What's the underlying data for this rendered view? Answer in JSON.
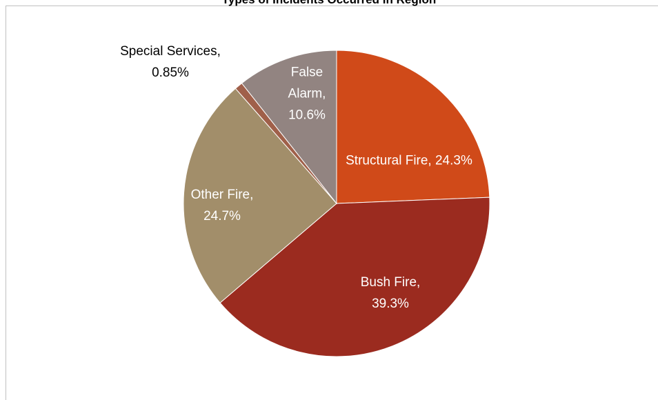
{
  "chart_data": {
    "type": "pie",
    "title": "Types of Incidents Occurred in Region",
    "categories": [
      "Structural Fire",
      "Bush Fire",
      "Other Fire",
      "Special Services",
      "False Alarm"
    ],
    "values": [
      24.3,
      39.3,
      24.7,
      0.85,
      10.6
    ],
    "value_labels": [
      "Structural Fire, 24.3%",
      "Bush Fire, 39.3%",
      "Other Fire, 24.7%",
      "Special Services, 0.85%",
      "False Alarm, 10.6%"
    ],
    "colors": [
      "#d04a19",
      "#9b2b1f",
      "#a28e6a",
      "#a0604a",
      "#928481"
    ]
  }
}
